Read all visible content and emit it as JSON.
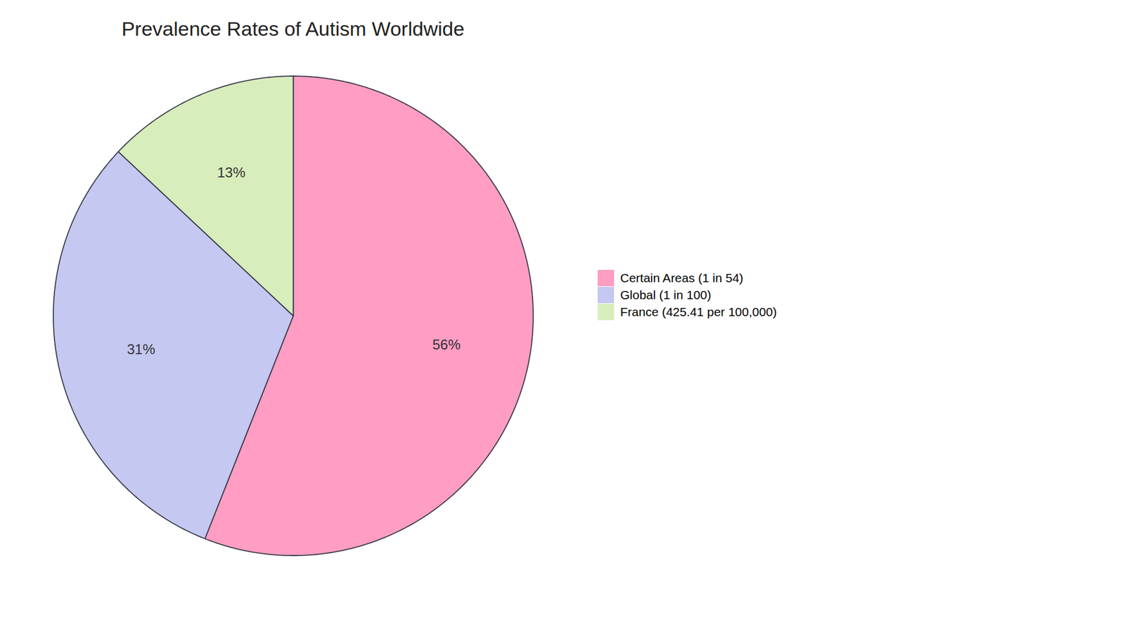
{
  "chart_data": {
    "type": "pie",
    "title": "Prevalence Rates of Autism Worldwide",
    "categories": [
      "Certain Areas (1 in 54)",
      "Global (1 in 100)",
      "France (425.41 per 100,000)"
    ],
    "values": [
      56,
      31,
      13
    ],
    "value_labels": [
      "56%",
      "31%",
      "13%"
    ],
    "colors": [
      "#FF9DC3",
      "#C5C8F0",
      "#D8EDBC"
    ],
    "data_labels": true,
    "legend": "right"
  }
}
